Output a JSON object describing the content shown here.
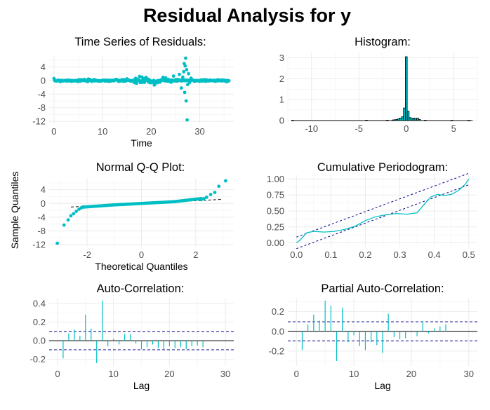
{
  "page": {
    "title": "Residual Analysis for  y",
    "accent": "#00bfc4",
    "ci_color": "#00008b"
  },
  "chart_data": [
    {
      "id": "ts",
      "type": "scatter",
      "title": "Time Series of Residuals:",
      "xlabel": "Time",
      "ylabel": "",
      "xlim": [
        -1,
        37
      ],
      "ylim": [
        -12.6,
        7.2
      ],
      "xticks": [
        0,
        10,
        20,
        30
      ],
      "yticks": [
        4,
        0,
        -4,
        -8,
        -12
      ],
      "ytick_labels": [
        "4",
        "0",
        "-4",
        "-8",
        "-12"
      ],
      "points_note": "dense residual series near 0 for t in [0,36], with spikes near t=26-28",
      "spikes": [
        [
          23.0,
          0.8
        ],
        [
          24.1,
          -0.5
        ],
        [
          24.6,
          1.3
        ],
        [
          25.2,
          0.2
        ],
        [
          25.8,
          1.8
        ],
        [
          26.2,
          -2.2
        ],
        [
          26.5,
          1.0
        ],
        [
          26.7,
          2.6
        ],
        [
          26.8,
          5.0
        ],
        [
          26.9,
          -3.5
        ],
        [
          27.0,
          4.3
        ],
        [
          27.1,
          6.6
        ],
        [
          27.2,
          -6.0
        ],
        [
          27.3,
          3.2
        ],
        [
          27.4,
          -11.6
        ],
        [
          27.5,
          -1.2
        ],
        [
          27.7,
          2.0
        ],
        [
          27.9,
          -0.6
        ],
        [
          28.2,
          0.7
        ],
        [
          17.0,
          -0.8
        ],
        [
          17.6,
          1.2
        ],
        [
          18.1,
          1.0
        ],
        [
          18.6,
          0.6
        ],
        [
          19.3,
          0.4
        ],
        [
          20.0,
          -0.6
        ]
      ],
      "grid": true
    },
    {
      "id": "hist",
      "type": "bar",
      "title": "Histogram:",
      "xlabel": "",
      "ylabel": "",
      "xlim": [
        -12.5,
        7.5
      ],
      "ylim": [
        0,
        3.25
      ],
      "xticks": [
        -10,
        -5,
        0,
        5
      ],
      "yticks": [
        0,
        1,
        2,
        3
      ],
      "bin_width": 0.2,
      "bins": [
        [
          -12.0,
          0.01
        ],
        [
          -4.2,
          0.02
        ],
        [
          -2.0,
          0.02
        ],
        [
          -1.4,
          0.03
        ],
        [
          -1.2,
          0.04
        ],
        [
          -1.0,
          0.05
        ],
        [
          -0.8,
          0.08
        ],
        [
          -0.6,
          0.12
        ],
        [
          -0.4,
          0.18
        ],
        [
          -0.2,
          0.6
        ],
        [
          0.0,
          3.05
        ],
        [
          0.2,
          0.45
        ],
        [
          0.4,
          0.14
        ],
        [
          0.6,
          0.1
        ],
        [
          0.8,
          0.12
        ],
        [
          1.0,
          0.08
        ],
        [
          1.2,
          0.12
        ],
        [
          1.4,
          0.05
        ],
        [
          2.0,
          0.02
        ],
        [
          4.8,
          0.01
        ],
        [
          6.6,
          0.01
        ]
      ],
      "grid": true
    },
    {
      "id": "qq",
      "type": "scatter",
      "title": "Normal Q-Q Plot:",
      "xlabel": "Theoretical Quantiles",
      "ylabel": "Sample Quantiles",
      "xlim": [
        -3.4,
        3.4
      ],
      "ylim": [
        -12.6,
        7.2
      ],
      "xticks": [
        -2,
        0,
        2
      ],
      "yticks": [
        4,
        0,
        -4,
        -8,
        -12
      ],
      "ytick_labels": [
        "4",
        "0",
        "-4",
        "-8",
        "-12"
      ],
      "tail_points": [
        [
          -3.1,
          -11.6
        ],
        [
          -2.85,
          -6.3
        ],
        [
          -2.7,
          -4.8
        ],
        [
          -2.6,
          -3.6
        ],
        [
          -2.5,
          -3.0
        ],
        [
          -2.4,
          -2.3
        ],
        [
          -2.3,
          -1.7
        ],
        [
          -2.22,
          -1.3
        ],
        [
          -2.15,
          -1.0
        ],
        [
          2.2,
          1.1
        ],
        [
          2.3,
          1.4
        ],
        [
          2.4,
          1.8
        ],
        [
          2.55,
          2.6
        ],
        [
          2.7,
          3.2
        ],
        [
          2.85,
          5.0
        ],
        [
          3.1,
          6.6
        ]
      ],
      "reference_line": {
        "slope": 0.4,
        "intercept": 0
      },
      "grid": true
    },
    {
      "id": "cpgram",
      "type": "line",
      "title": "Cumulative Periodogram:",
      "xlabel": "",
      "ylabel": "",
      "xlim": [
        -0.025,
        0.525
      ],
      "ylim": [
        -0.06,
        1.06
      ],
      "xticks": [
        0.0,
        0.1,
        0.2,
        0.3,
        0.4,
        0.5
      ],
      "xtick_labels": [
        "0.0",
        "0.1",
        "0.2",
        "0.3",
        "0.4",
        "0.5"
      ],
      "yticks": [
        0.0,
        0.25,
        0.5,
        0.75,
        1.0
      ],
      "ytick_labels": [
        "0.00",
        "0.25",
        "0.50",
        "0.75",
        "1.00"
      ],
      "x": [
        0.0,
        0.01,
        0.02,
        0.03,
        0.05,
        0.08,
        0.11,
        0.14,
        0.17,
        0.2,
        0.23,
        0.26,
        0.29,
        0.32,
        0.35,
        0.37,
        0.39,
        0.41,
        0.43,
        0.45,
        0.47,
        0.49,
        0.5
      ],
      "y": [
        0.0,
        0.04,
        0.1,
        0.16,
        0.18,
        0.17,
        0.18,
        0.21,
        0.26,
        0.35,
        0.41,
        0.44,
        0.46,
        0.45,
        0.47,
        0.6,
        0.72,
        0.76,
        0.74,
        0.76,
        0.82,
        0.92,
        1.0
      ],
      "ci_upper": [
        [
          0.0,
          0.09
        ],
        [
          0.5,
          1.09
        ]
      ],
      "ci_lower": [
        [
          0.0,
          -0.09
        ],
        [
          0.5,
          0.91
        ]
      ],
      "grid": true
    },
    {
      "id": "acf",
      "type": "bar",
      "title": "Auto-Correlation:",
      "xlabel": "Lag",
      "ylabel": "",
      "xlim": [
        -1.5,
        31.5
      ],
      "ylim": [
        -0.27,
        0.46
      ],
      "xticks": [
        0,
        10,
        20,
        30
      ],
      "yticks": [
        0.4,
        0.2,
        0.0,
        -0.2
      ],
      "ytick_labels": [
        "0.4",
        "0.2",
        "0.0",
        "-0.2"
      ],
      "lags": [
        1,
        2,
        3,
        4,
        5,
        6,
        7,
        8,
        9,
        10,
        11,
        12,
        13,
        14,
        15,
        16,
        17,
        18,
        19,
        20,
        21,
        22,
        23,
        24,
        25,
        26
      ],
      "values": [
        -0.19,
        0.08,
        0.12,
        0.05,
        0.28,
        0.13,
        -0.24,
        0.43,
        -0.06,
        0.02,
        -0.04,
        0.07,
        0.07,
        -0.03,
        -0.09,
        -0.07,
        -0.04,
        -0.08,
        -0.09,
        -0.06,
        -0.08,
        -0.07,
        -0.09,
        -0.06,
        -0.05,
        -0.07
      ],
      "ci": 0.097,
      "grid": true
    },
    {
      "id": "pacf",
      "type": "bar",
      "title": "Partial Auto-Correlation:",
      "xlabel": "Lag",
      "ylabel": "",
      "xlim": [
        -1.5,
        31.5
      ],
      "ylim": [
        -0.35,
        0.34
      ],
      "xticks": [
        0,
        10,
        20,
        30
      ],
      "yticks": [
        0.2,
        0.0,
        -0.2
      ],
      "ytick_labels": [
        "0.2",
        "0.0",
        "-0.2"
      ],
      "lags": [
        1,
        2,
        3,
        4,
        5,
        6,
        7,
        8,
        9,
        10,
        11,
        12,
        13,
        14,
        15,
        16,
        17,
        18,
        19,
        20,
        21,
        22,
        23,
        24,
        25,
        26
      ],
      "values": [
        -0.19,
        0.07,
        0.17,
        0.11,
        0.31,
        0.26,
        -0.3,
        0.24,
        -0.11,
        -0.04,
        -0.15,
        -0.19,
        -0.11,
        -0.14,
        -0.22,
        0.18,
        -0.06,
        -0.08,
        -0.07,
        -0.01,
        -0.05,
        0.1,
        -0.02,
        0.03,
        0.05,
        0.07
      ],
      "ci": 0.097,
      "grid": true
    }
  ]
}
